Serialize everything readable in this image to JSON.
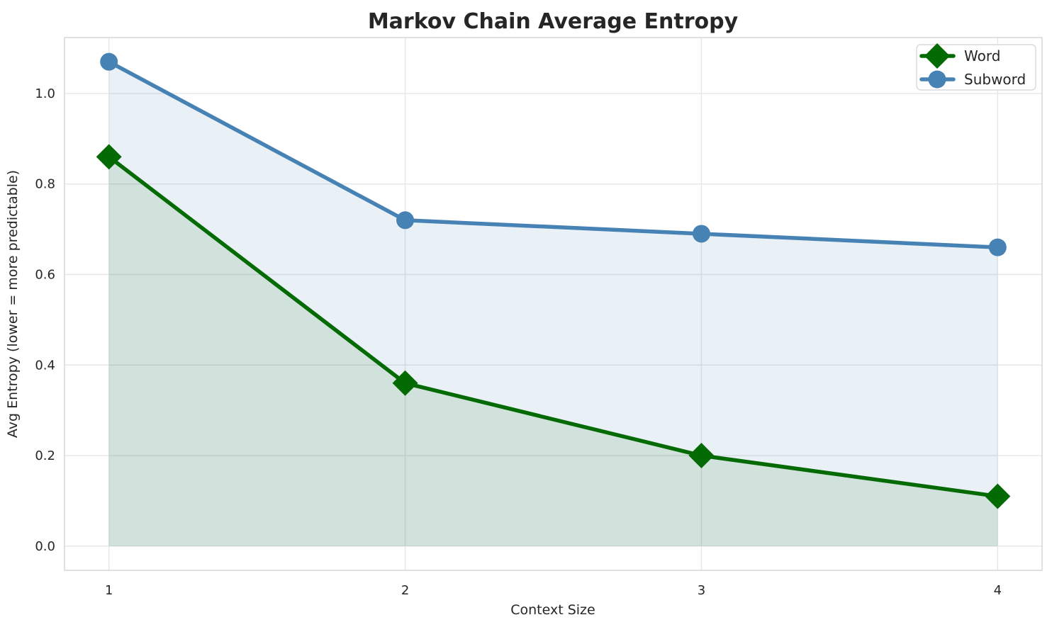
{
  "chart_data": {
    "type": "line",
    "title": "Markov Chain Average Entropy",
    "xlabel": "Context Size",
    "ylabel": "Avg Entropy (lower = more predictable)",
    "x": [
      1,
      2,
      3,
      4
    ],
    "series": [
      {
        "name": "Word",
        "values": [
          0.86,
          0.36,
          0.2,
          0.11
        ],
        "color": "#046a04",
        "marker": "diamond",
        "fill_opacity": 0.1
      },
      {
        "name": "Subword",
        "values": [
          1.07,
          0.72,
          0.69,
          0.66
        ],
        "color": "#4682b4",
        "marker": "circle",
        "fill_opacity": 0.12
      }
    ],
    "xticks": [
      "1",
      "2",
      "3",
      "4"
    ],
    "xtick_values": [
      1,
      2,
      3,
      4
    ],
    "yticks": [
      "0.0",
      "0.2",
      "0.4",
      "0.6",
      "0.8",
      "1.0"
    ],
    "ytick_values": [
      0.0,
      0.2,
      0.4,
      0.6,
      0.8,
      1.0
    ],
    "xlim": [
      0.85,
      4.15
    ],
    "ylim": [
      -0.0535,
      1.1235
    ],
    "fill_baseline": 0,
    "grid": true,
    "grid_color": "#e6e6e6",
    "spine_color": "#d4d4d4",
    "text_color": "#262626",
    "background_color": "#ffffff",
    "legend_position": "upper right"
  }
}
